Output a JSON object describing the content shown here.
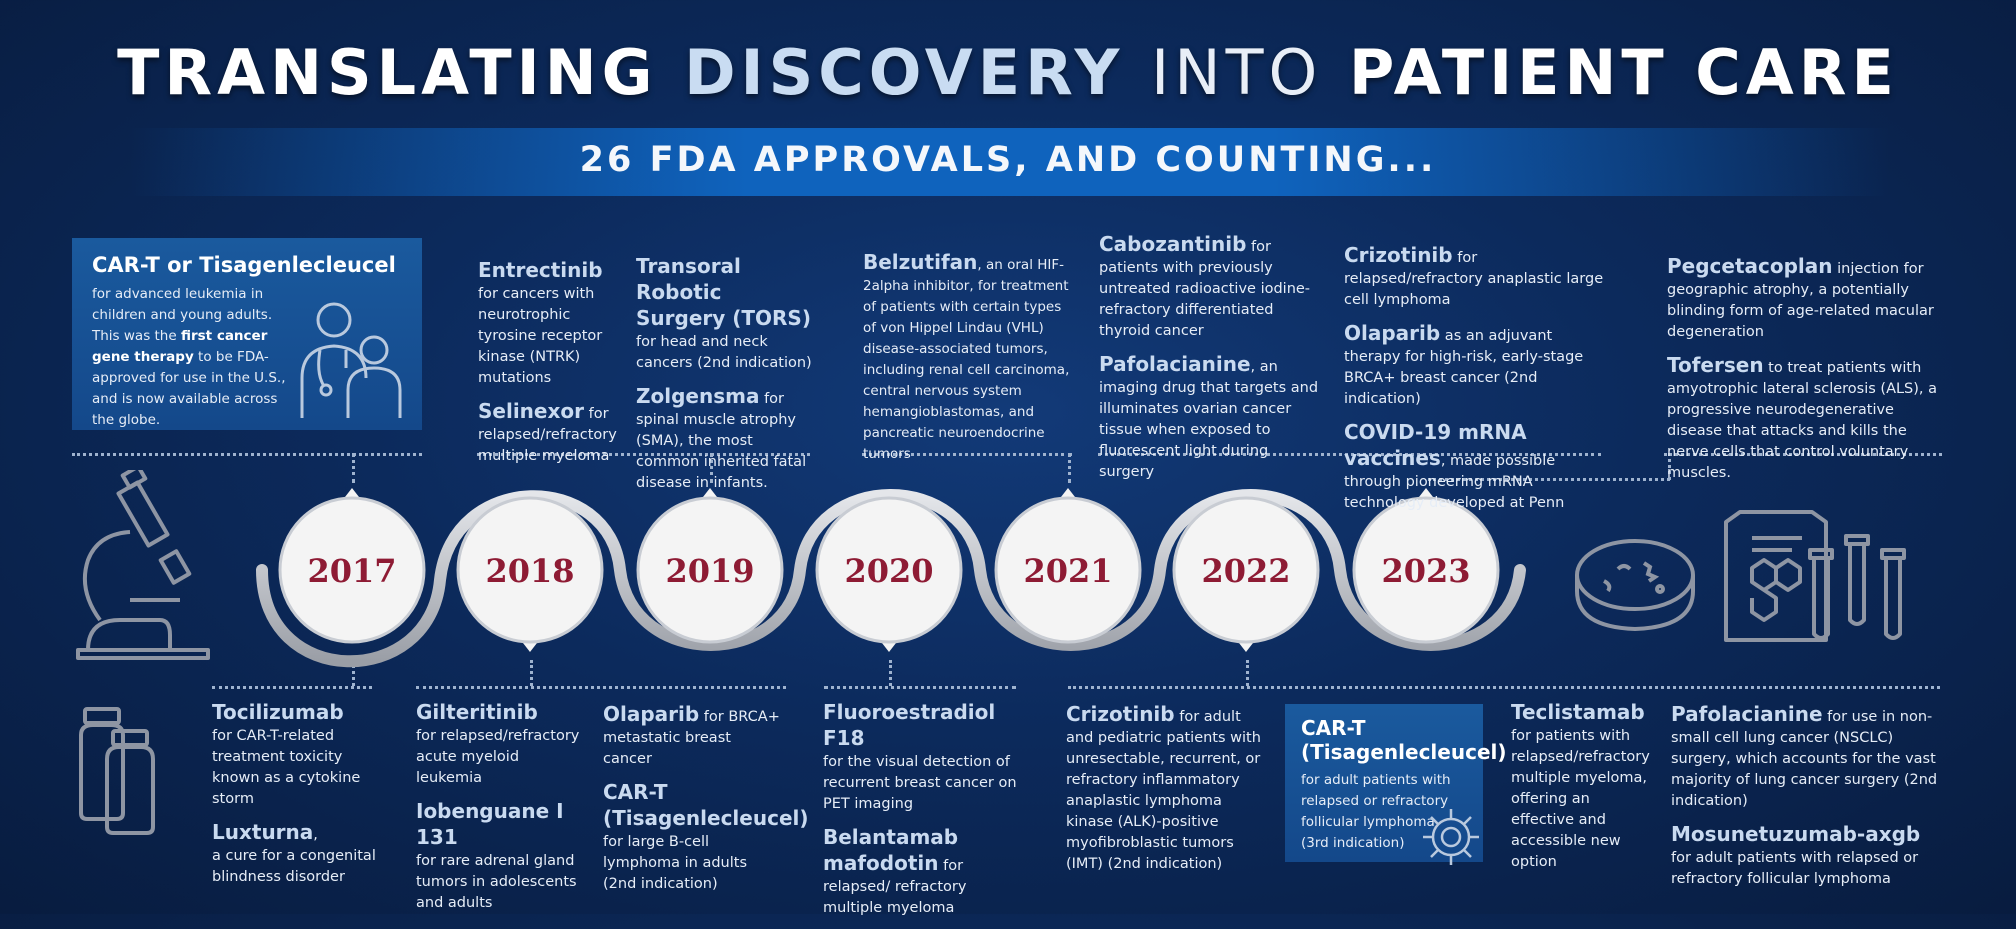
{
  "header": {
    "title_part1": "TRANSLATING",
    "title_part2": "DISCOVERY",
    "title_part3": "INTO",
    "title_part4": "PATIENT CARE",
    "subtitle": "26 FDA APPROVALS, AND COUNTING..."
  },
  "years": [
    "2017",
    "2018",
    "2019",
    "2020",
    "2021",
    "2022",
    "2023"
  ],
  "top": {
    "c2017": {
      "title": "CAR-T or Tisagenlecleucel",
      "t1": "for advanced leukemia in children and young adults. This was the ",
      "bold": "first cancer gene therapy",
      "t2": " to be FDA-approved for use in the U.S., and is now available across the globe."
    },
    "c2018": {
      "h1": "Entrectinib",
      "d1": "for cancers with neurotrophic tyrosine receptor kinase (NTRK) mutations",
      "h2": "Selinexor",
      "d2": " for relapsed/refractory multiple myeloma"
    },
    "c2019": {
      "h1": "Transoral Robotic Surgery (TORS)",
      "d1": " for head and neck cancers (2nd indication)",
      "h2": "Zolgensma",
      "d2": " for spinal muscle atrophy (SMA), the most common inherited fatal disease in infants."
    },
    "c2020": {
      "h1": "Belzutifan",
      "d1": ", an oral HIF-2alpha inhibitor, for treatment of patients with certain types of von Hippel Lindau (VHL) disease-associated tumors, including renal cell carcinoma, central nervous system hemangioblastomas, and pancreatic neuroendocrine tumors"
    },
    "c2021": {
      "h1": "Cabozantinib",
      "d1": " for patients with previously untreated radioactive iodine-refractory differentiated thyroid cancer",
      "h2": "Pafolacianine",
      "d2": ", an imaging drug that targets and illuminates ovarian cancer tissue when exposed to fluorescent light during surgery"
    },
    "c2022": {
      "h1": "Crizotinib",
      "d1": " for relapsed/refractory anaplastic large cell lymphoma",
      "h2": "Olaparib",
      "d2": " as an adjuvant therapy for high-risk, early-stage BRCA+ breast cancer (2nd indication)",
      "h3": "COVID-19 mRNA vaccines",
      "d3": ", made possible through pioneering mRNA technology developed at Penn"
    },
    "c2023": {
      "h1": "Pegcetacoplan",
      "d1": " injection for geographic atrophy, a potentially blinding form of age-related macular degeneration",
      "h2": "Tofersen",
      "d2": " to treat patients with amyotrophic lateral sclerosis (ALS), a progressive neurodegenerative disease that attacks and kills the nerve cells that control voluntary muscles."
    }
  },
  "bottom": {
    "b2017": {
      "h1": "Tocilizumab",
      "d1": "for CAR-T-related treatment toxicity known as a cytokine storm",
      "h2": "Luxturna",
      "d2b": ",",
      "d2": "a cure for a congenital blindness disorder"
    },
    "b2018": {
      "h1": "Gilteritinib",
      "d1": "for relapsed/refractory acute myeloid leukemia",
      "h2": "Iobenguane I 131",
      "d2": "for rare adrenal gland tumors in adolescents and adults"
    },
    "b2019": {
      "h1": "Olaparib",
      "d1": " for BRCA+ metastatic breast cancer",
      "h2": "CAR-T (Tisagenlecleucel)",
      "d2": "for large B-cell lymphoma in adults (2nd indication)"
    },
    "b2020": {
      "h1": "Fluoroestradiol F18",
      "d1": "for the visual detection of recurrent breast cancer on PET imaging",
      "h2": "Belantamab mafodotin",
      "d2": " for relapsed/ refractory multiple myeloma"
    },
    "b2021": {
      "h1": "Crizotinib",
      "d1": " for adult and pediatric patients with unresectable, recurrent, or refractory inflammatory anaplastic lymphoma kinase (ALK)-positive myofibroblastic tumors (IMT) (2nd indication)"
    },
    "b2022": {
      "h1": "CAR-T (Tisagenlecleucel)",
      "d1": "for adult patients with relapsed or refractory follicular lymphoma (3rd indication)"
    },
    "b2023a": {
      "h1": "Teclistamab",
      "d1": "for patients with relapsed/refractory multiple myeloma, offering an effective and accessible new option"
    },
    "b2023b": {
      "h1": "Pafolacianine",
      "d1": " for use in non-small cell lung cancer (NSCLC) surgery, which accounts for the vast majority of lung cancer surgery (2nd indication)",
      "h2": "Mosunetuzumab-axgb",
      "d2": "for adult patients with relapsed or refractory follicular lymphoma"
    }
  },
  "icons": [
    "microscope-icon",
    "doctor-child-icon",
    "medicine-bottles-icon",
    "petri-dish-icon",
    "lab-report-test-tubes-icon",
    "virus-icon"
  ],
  "colors": {
    "year_text": "#8e1b34",
    "background": "#0c2a5c",
    "banner": "#0f63bd",
    "accent_heading": "#c9daf0"
  }
}
